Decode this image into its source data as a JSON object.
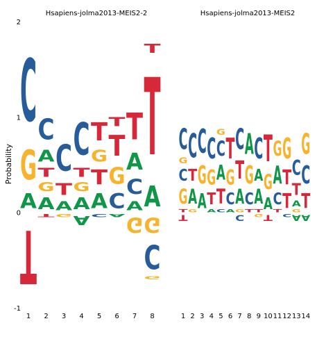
{
  "chart_data": {
    "type": "sequence-logo",
    "ylabel": "Probability",
    "ylim": [
      -1,
      2
    ],
    "yticks": [
      "-1",
      "0",
      "1",
      "2"
    ],
    "colors": {
      "A": "#109648",
      "C": "#255C99",
      "G": "#F7B32B",
      "T": "#D62839"
    },
    "panels": [
      {
        "title": "Hsapiens-jolma2013-MEIS2-2",
        "positions": [
          "1",
          "2",
          "3",
          "4",
          "5",
          "6",
          "7",
          "8"
        ],
        "stacks": [
          {
            "up": [
              [
                "A",
                0.25
              ],
              [
                "G",
                0.5
              ],
              [
                "C",
                1.05
              ]
            ],
            "down": [
              [
                "T",
                0.9
              ]
            ]
          },
          {
            "up": [
              [
                "A",
                0.2
              ],
              [
                "G",
                0.15
              ],
              [
                "T",
                0.15
              ],
              [
                "A",
                0.2
              ],
              [
                "C",
                0.35
              ]
            ],
            "down": [
              [
                "T",
                0.05
              ]
            ]
          },
          {
            "up": [
              [
                "A",
                0.15
              ],
              [
                "T",
                0.2
              ],
              [
                "C",
                0.45
              ]
            ],
            "down": [
              [
                "G",
                0.05
              ]
            ]
          },
          {
            "up": [
              [
                "A",
                0.2
              ],
              [
                "G",
                0.15
              ],
              [
                "T",
                0.15
              ],
              [
                "C",
                0.55
              ]
            ],
            "down": [
              [
                "A",
                0.15
              ]
            ]
          },
          {
            "up": [
              [
                "A",
                0.25
              ],
              [
                "T",
                0.25
              ],
              [
                "G",
                0.2
              ],
              [
                "T",
                0.3
              ]
            ],
            "down": [
              [
                "C",
                0.05
              ]
            ]
          },
          {
            "up": [
              [
                "C",
                0.25
              ],
              [
                "G",
                0.28
              ],
              [
                "T",
                0.35
              ],
              [
                "T",
                0.15
              ]
            ],
            "down": [
              [
                "A",
                0.05
              ]
            ]
          },
          {
            "up": [
              [
                "A",
                0.15
              ],
              [
                "C",
                0.25
              ],
              [
                "A",
                0.28
              ],
              [
                "T",
                0.45
              ]
            ],
            "down": [
              [
                "G",
                0.25
              ]
            ]
          },
          {
            "up": [
              [
                "A",
                0.35
              ],
              [
                "T",
                1.3
              ],
              [
                "T",
                0.15
              ]
            ],
            "down": [
              [
                "G",
                0.25
              ],
              [
                "C",
                0.4
              ],
              [
                "G",
                0.05
              ]
            ]
          }
        ]
      },
      {
        "title": "Hsapiens-jolma2013-MEIS2",
        "positions": [
          "1",
          "2",
          "3",
          "4",
          "5",
          "6",
          "7",
          "8",
          "9",
          "10",
          "11",
          "12",
          "13",
          "14"
        ],
        "stacks": [
          {
            "up": [
              [
                "T",
                0.05
              ],
              [
                "G",
                0.25
              ],
              [
                "C",
                0.2
              ],
              [
                "G",
                0.1
              ],
              [
                "C",
                0.35
              ]
            ],
            "down": [
              [
                "T",
                0.1
              ]
            ]
          },
          {
            "up": [
              [
                "G",
                0.05
              ],
              [
                "A",
                0.25
              ],
              [
                "T",
                0.2
              ],
              [
                "C",
                0.4
              ]
            ],
            "down": []
          },
          {
            "up": [
              [
                "A",
                0.25
              ],
              [
                "G",
                0.3
              ],
              [
                "C",
                0.4
              ]
            ],
            "down": []
          },
          {
            "up": [
              [
                "A",
                0.05
              ],
              [
                "T",
                0.2
              ],
              [
                "G",
                0.25
              ],
              [
                "C",
                0.35
              ]
            ],
            "down": []
          },
          {
            "up": [
              [
                "C",
                0.05
              ],
              [
                "T",
                0.25
              ],
              [
                "A",
                0.25
              ],
              [
                "C",
                0.25
              ],
              [
                "G",
                0.1
              ]
            ],
            "down": []
          },
          {
            "up": [
              [
                "A",
                0.05
              ],
              [
                "C",
                0.2
              ],
              [
                "G",
                0.25
              ],
              [
                "T",
                0.35
              ]
            ],
            "down": []
          },
          {
            "up": [
              [
                "G",
                0.05
              ],
              [
                "A",
                0.25
              ],
              [
                "T",
                0.3
              ],
              [
                "C",
                0.35
              ]
            ],
            "down": [
              [
                "C",
                0.1
              ]
            ]
          },
          {
            "up": [
              [
                "T",
                0.05
              ],
              [
                "C",
                0.2
              ],
              [
                "G",
                0.3
              ],
              [
                "A",
                0.35
              ]
            ],
            "down": []
          },
          {
            "up": [
              [
                "T",
                0.05
              ],
              [
                "A",
                0.25
              ],
              [
                "A",
                0.2
              ],
              [
                "C",
                0.35
              ]
            ],
            "down": [
              [
                "G",
                0.05
              ]
            ]
          },
          {
            "up": [
              [
                "A",
                0.2
              ],
              [
                "G",
                0.25
              ],
              [
                "T",
                0.45
              ]
            ],
            "down": [
              [
                "T",
                0.1
              ]
            ]
          },
          {
            "up": [
              [
                "T",
                0.05
              ],
              [
                "C",
                0.2
              ],
              [
                "A",
                0.3
              ],
              [
                "G",
                0.25
              ]
            ],
            "down": []
          },
          {
            "up": [
              [
                "T",
                0.25
              ],
              [
                "T",
                0.25
              ],
              [
                "G",
                0.35
              ]
            ],
            "down": [
              [
                "C",
                0.05
              ]
            ]
          },
          {
            "up": [
              [
                "G",
                0.05
              ],
              [
                "A",
                0.1
              ],
              [
                "T",
                0.2
              ],
              [
                "C",
                0.25
              ]
            ],
            "down": [
              [
                "A",
                0.1
              ]
            ]
          },
          {
            "up": [
              [
                "T",
                0.25
              ],
              [
                "C",
                0.3
              ],
              [
                "G",
                0.35
              ]
            ],
            "down": [
              [
                "A",
                0.1
              ]
            ]
          }
        ]
      }
    ]
  }
}
